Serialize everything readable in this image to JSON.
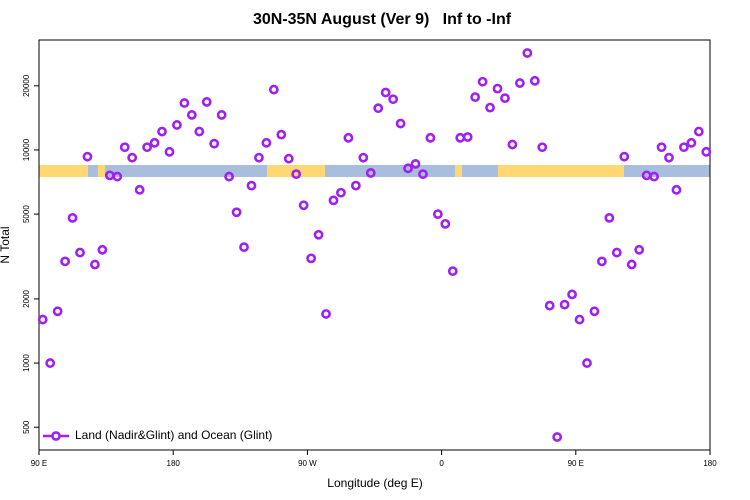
{
  "chart_data": {
    "type": "scatter",
    "title": "30N-35N August (Ver 9)   Inf to -Inf",
    "xlabel": "Longitude (deg E)",
    "ylabel": "N Total",
    "xlim": [
      90,
      540
    ],
    "ylim": [
      391,
      32800
    ],
    "log_y": true,
    "xticks": [
      {
        "value": 90,
        "label": "90 E"
      },
      {
        "value": 180,
        "label": "180"
      },
      {
        "value": 270,
        "label": "90 W"
      },
      {
        "value": 360,
        "label": "0"
      },
      {
        "value": 450,
        "label": "90 E"
      },
      {
        "value": 540,
        "label": "180"
      }
    ],
    "yticks": [
      500,
      1000,
      2000,
      5000,
      10000,
      20000
    ],
    "legend_position": "bottom left",
    "series": [
      {
        "name": "Land (Nadir&Glint) and Ocean (Glint)",
        "color": "#a020f0",
        "x": [
          92.5,
          97.5,
          102.5,
          107.5,
          112.5,
          117.5,
          122.5,
          127.5,
          132.5,
          137.5,
          142.5,
          147.5,
          152.5,
          157.5,
          162.5,
          167.5,
          172.5,
          177.5,
          182.5,
          187.5,
          192.5,
          197.5,
          202.5,
          207.5,
          212.5,
          217.5,
          222.5,
          227.5,
          232.5,
          237.5,
          242.5,
          247.5,
          252.5,
          257.5,
          262.5,
          267.5,
          272.5,
          277.5,
          282.5,
          287.5,
          292.5,
          297.5,
          302.5,
          307.5,
          312.5,
          317.5,
          322.5,
          327.5,
          332.5,
          337.5,
          342.5,
          347.5,
          352.5,
          357.5,
          362.5,
          367.5,
          372.5,
          377.5,
          382.5,
          387.5,
          392.5,
          397.5,
          402.5,
          407.5,
          412.5,
          417.5,
          422.5,
          427.5,
          432.5,
          437.5,
          442.5,
          447.5,
          452.5,
          457.5,
          462.5,
          467.5,
          472.5,
          477.5,
          482.5,
          487.5,
          492.5,
          497.5,
          502.5,
          507.5,
          512.5,
          517.5,
          522.5,
          527.5,
          532.5,
          537.5
        ],
        "values": [
          1600,
          1000,
          1750,
          3000,
          4800,
          3300,
          9300,
          2900,
          3400,
          7600,
          7500,
          10300,
          9200,
          6500,
          10300,
          10800,
          12200,
          9800,
          13100,
          16600,
          14600,
          12200,
          16800,
          10700,
          14600,
          7500,
          5100,
          3500,
          6800,
          9200,
          10800,
          19200,
          11800,
          9100,
          7700,
          5500,
          3100,
          4000,
          1700,
          5800,
          6300,
          11400,
          6800,
          9200,
          7800,
          15700,
          18600,
          17300,
          13300,
          8200,
          8600,
          7700,
          11400,
          5000,
          4500,
          2700,
          11400,
          11500,
          17700,
          20900,
          15800,
          19400,
          17500,
          10600,
          20600,
          28500,
          21100,
          10300,
          1860,
          450,
          1880,
          2100,
          1600,
          1000,
          1750,
          3000,
          4800,
          3300,
          9300,
          2900,
          3400,
          7600,
          7500,
          10300,
          9200,
          6500,
          10300,
          10800,
          12200,
          9800
        ]
      }
    ]
  }
}
